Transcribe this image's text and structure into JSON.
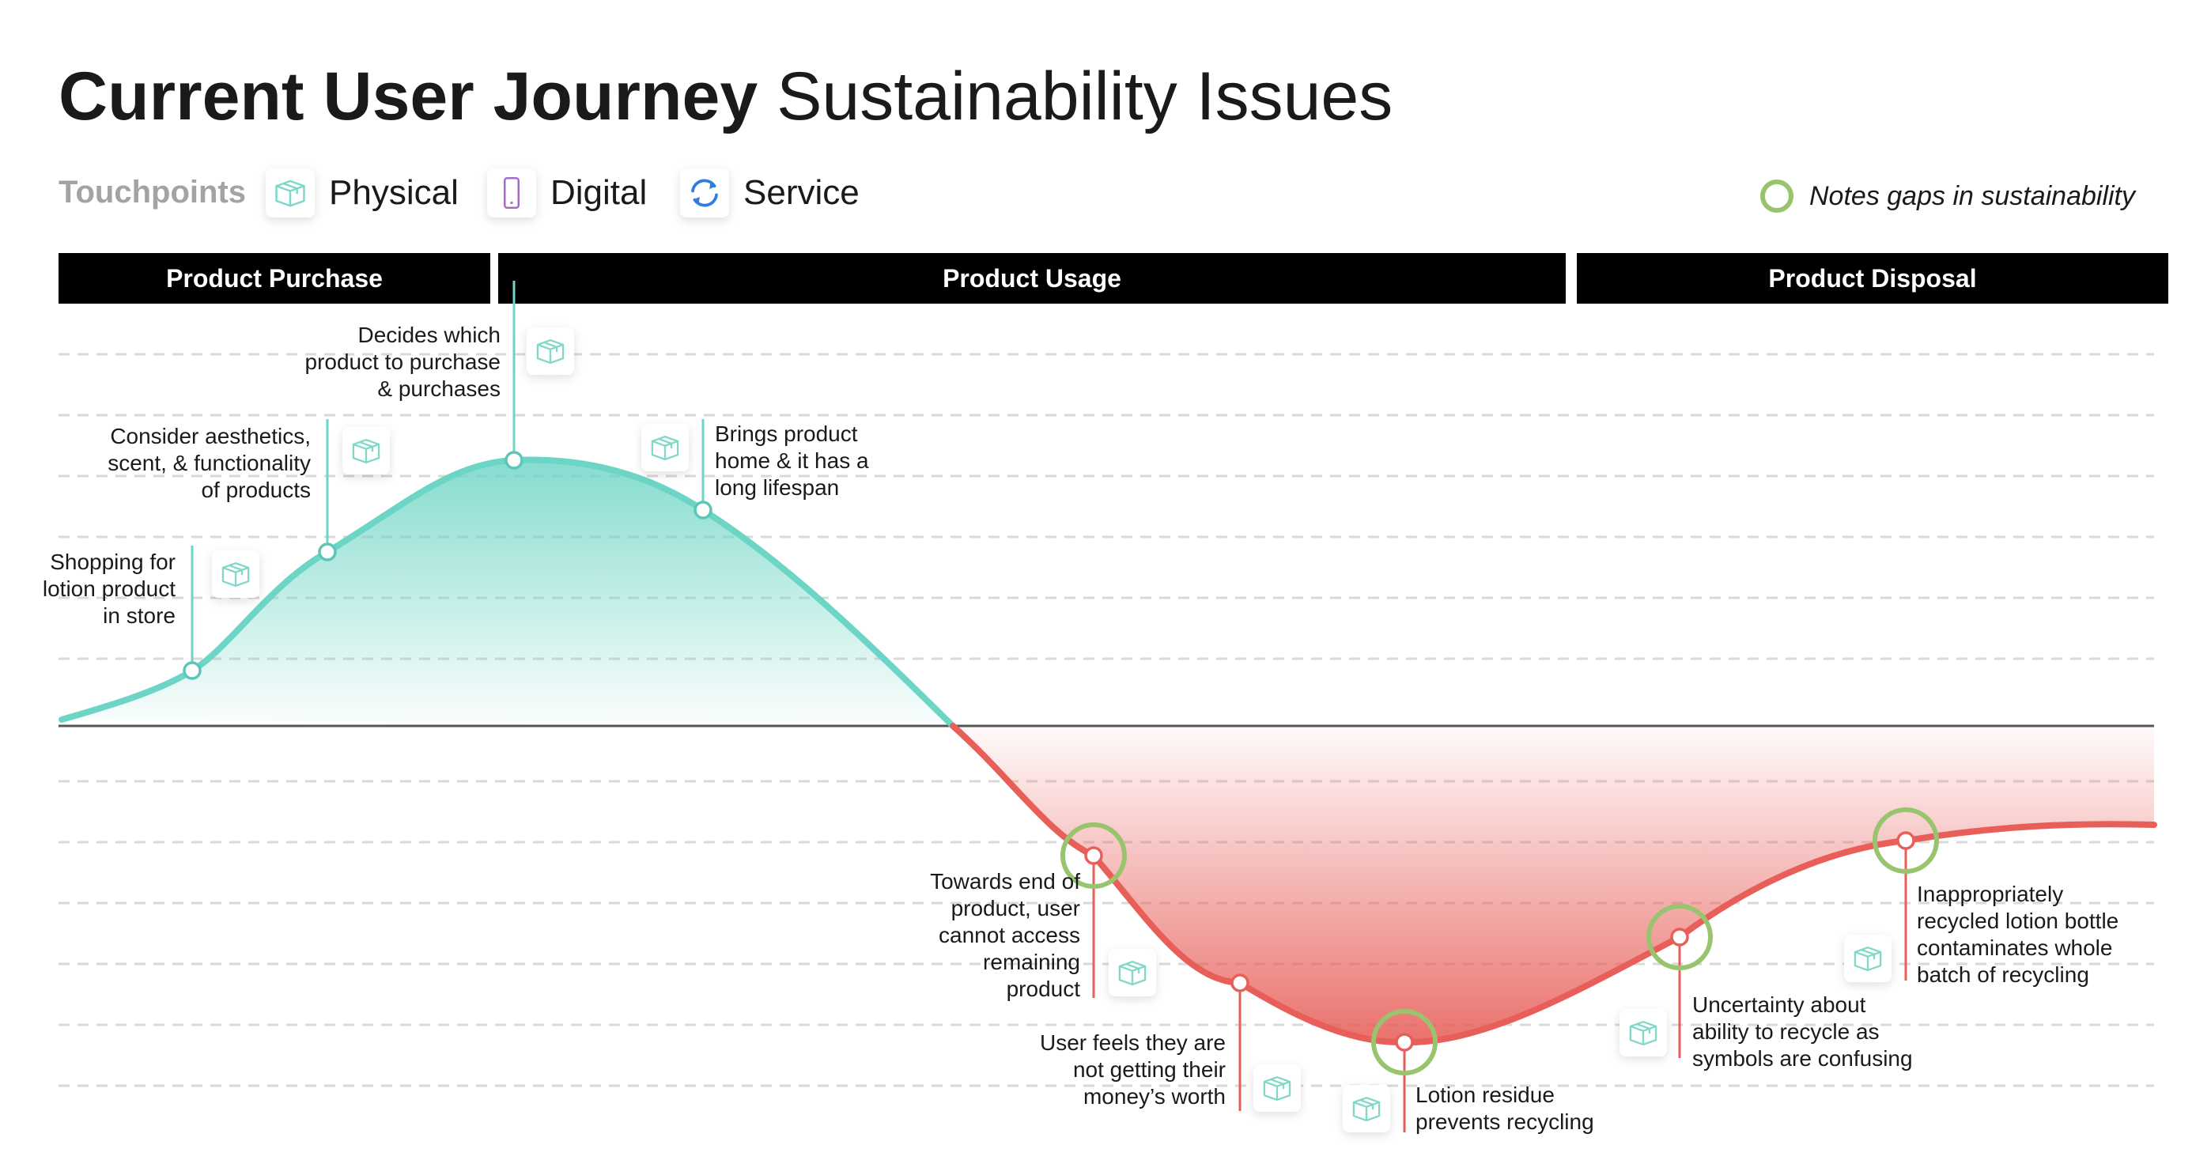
{
  "title": {
    "bold": "Current User Journey",
    "light": "Sustainability Issues"
  },
  "legend": {
    "label": "Touchpoints",
    "items": [
      {
        "name": "Physical",
        "icon": "box-icon"
      },
      {
        "name": "Digital",
        "icon": "phone-icon"
      },
      {
        "name": "Service",
        "icon": "refresh-icon"
      }
    ],
    "gap_note": "Notes gaps in sustainability"
  },
  "colors": {
    "positive": "#6dd5c5",
    "negative": "#e85f5a",
    "gap": "#98c46e",
    "box_icon": "#7fd8c8",
    "digital_icon": "#a46bc8",
    "service_icon": "#2f7de1"
  },
  "phases": [
    "Product Purchase",
    "Product Usage",
    "Product Disposal"
  ],
  "moments": [
    {
      "label": "Shopping for\nlotion product\nin store",
      "touchpoint": "Physical",
      "sentiment": 1,
      "gap": false
    },
    {
      "label": "Consider aesthetics,\nscent, & functionality\nof products",
      "touchpoint": "Physical",
      "sentiment": 3,
      "gap": false
    },
    {
      "label": "Decides which\nproduct to purchase\n& purchases",
      "touchpoint": "Physical",
      "sentiment": 4.5,
      "gap": false
    },
    {
      "label": "Brings product\nhome & it has a\nlong lifespan",
      "touchpoint": "Physical",
      "sentiment": 3.8,
      "gap": false
    },
    {
      "label": "Towards end of\nproduct, user\ncannot access\nremaining\nproduct",
      "touchpoint": "Physical",
      "sentiment": -2.2,
      "gap": true
    },
    {
      "label": "User feels they are\nnot getting their\nmoney’s worth",
      "touchpoint": "Physical",
      "sentiment": -4.4,
      "gap": false
    },
    {
      "label": "Lotion residue\nprevents recycling",
      "touchpoint": "Physical",
      "sentiment": -5.2,
      "gap": true
    },
    {
      "label": "Uncertainty about\nability to recycle as\nsymbols are confusing",
      "touchpoint": "Physical",
      "sentiment": -3.5,
      "gap": true
    },
    {
      "label": "Inappropriately\nrecycled lotion bottle\ncontaminates whole\nbatch of recycling",
      "touchpoint": "Physical",
      "sentiment": -1.9,
      "gap": true
    }
  ]
}
